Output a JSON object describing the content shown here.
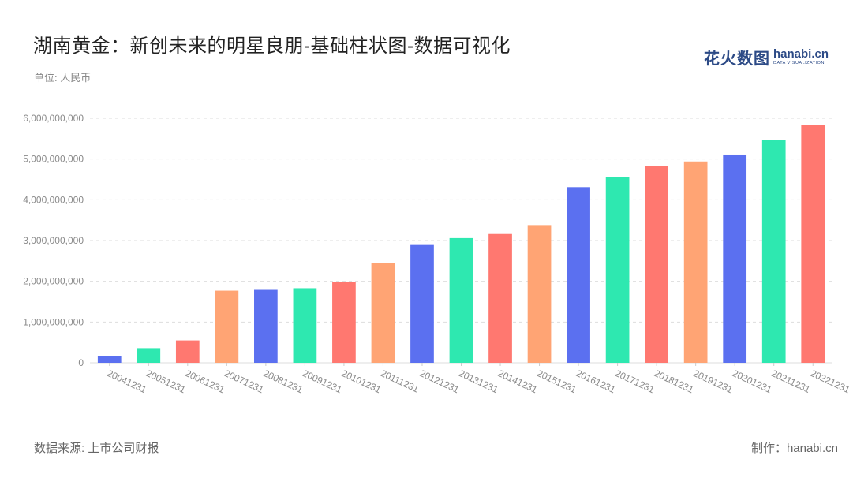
{
  "header": {
    "title": "湖南黄金：新创未来的明星良朋-基础柱状图-数据可视化",
    "unit": "单位: 人民币"
  },
  "logo": {
    "cn": "花火数图",
    "en": "hanabi.cn",
    "en_sub": "DATA VISUALIZATION"
  },
  "footer": {
    "source": "数据来源: 上市公司财报",
    "credit": "制作：hanabi.cn"
  },
  "colors": {
    "palette": [
      "#ffa474",
      "#5b70f0",
      "#2ee8b0",
      "#ff7870"
    ],
    "grid": "#dddddd",
    "axis_label": "#8a8a8a"
  },
  "chart_data": {
    "type": "bar",
    "categories": [
      "20041231",
      "20051231",
      "20061231",
      "20071231",
      "20081231",
      "20091231",
      "20101231",
      "20111231",
      "20121231",
      "20131231",
      "20141231",
      "20151231",
      "20161231",
      "20171231",
      "20181231",
      "20191231",
      "20201231",
      "20211231",
      "20221231"
    ],
    "values": [
      170000000,
      360000000,
      550000000,
      1770000000,
      1790000000,
      1830000000,
      1990000000,
      2450000000,
      2910000000,
      3060000000,
      3160000000,
      3380000000,
      4310000000,
      4560000000,
      4830000000,
      4940000000,
      5110000000,
      5470000000,
      5830000000
    ],
    "yticks": [
      "0",
      "1,000,000,000",
      "2,000,000,000",
      "3,000,000,000",
      "4,000,000,000",
      "5,000,000,000",
      "6,000,000,000"
    ],
    "ylim": [
      0,
      6000000000
    ],
    "grid": true,
    "xlabel": "",
    "ylabel": ""
  }
}
